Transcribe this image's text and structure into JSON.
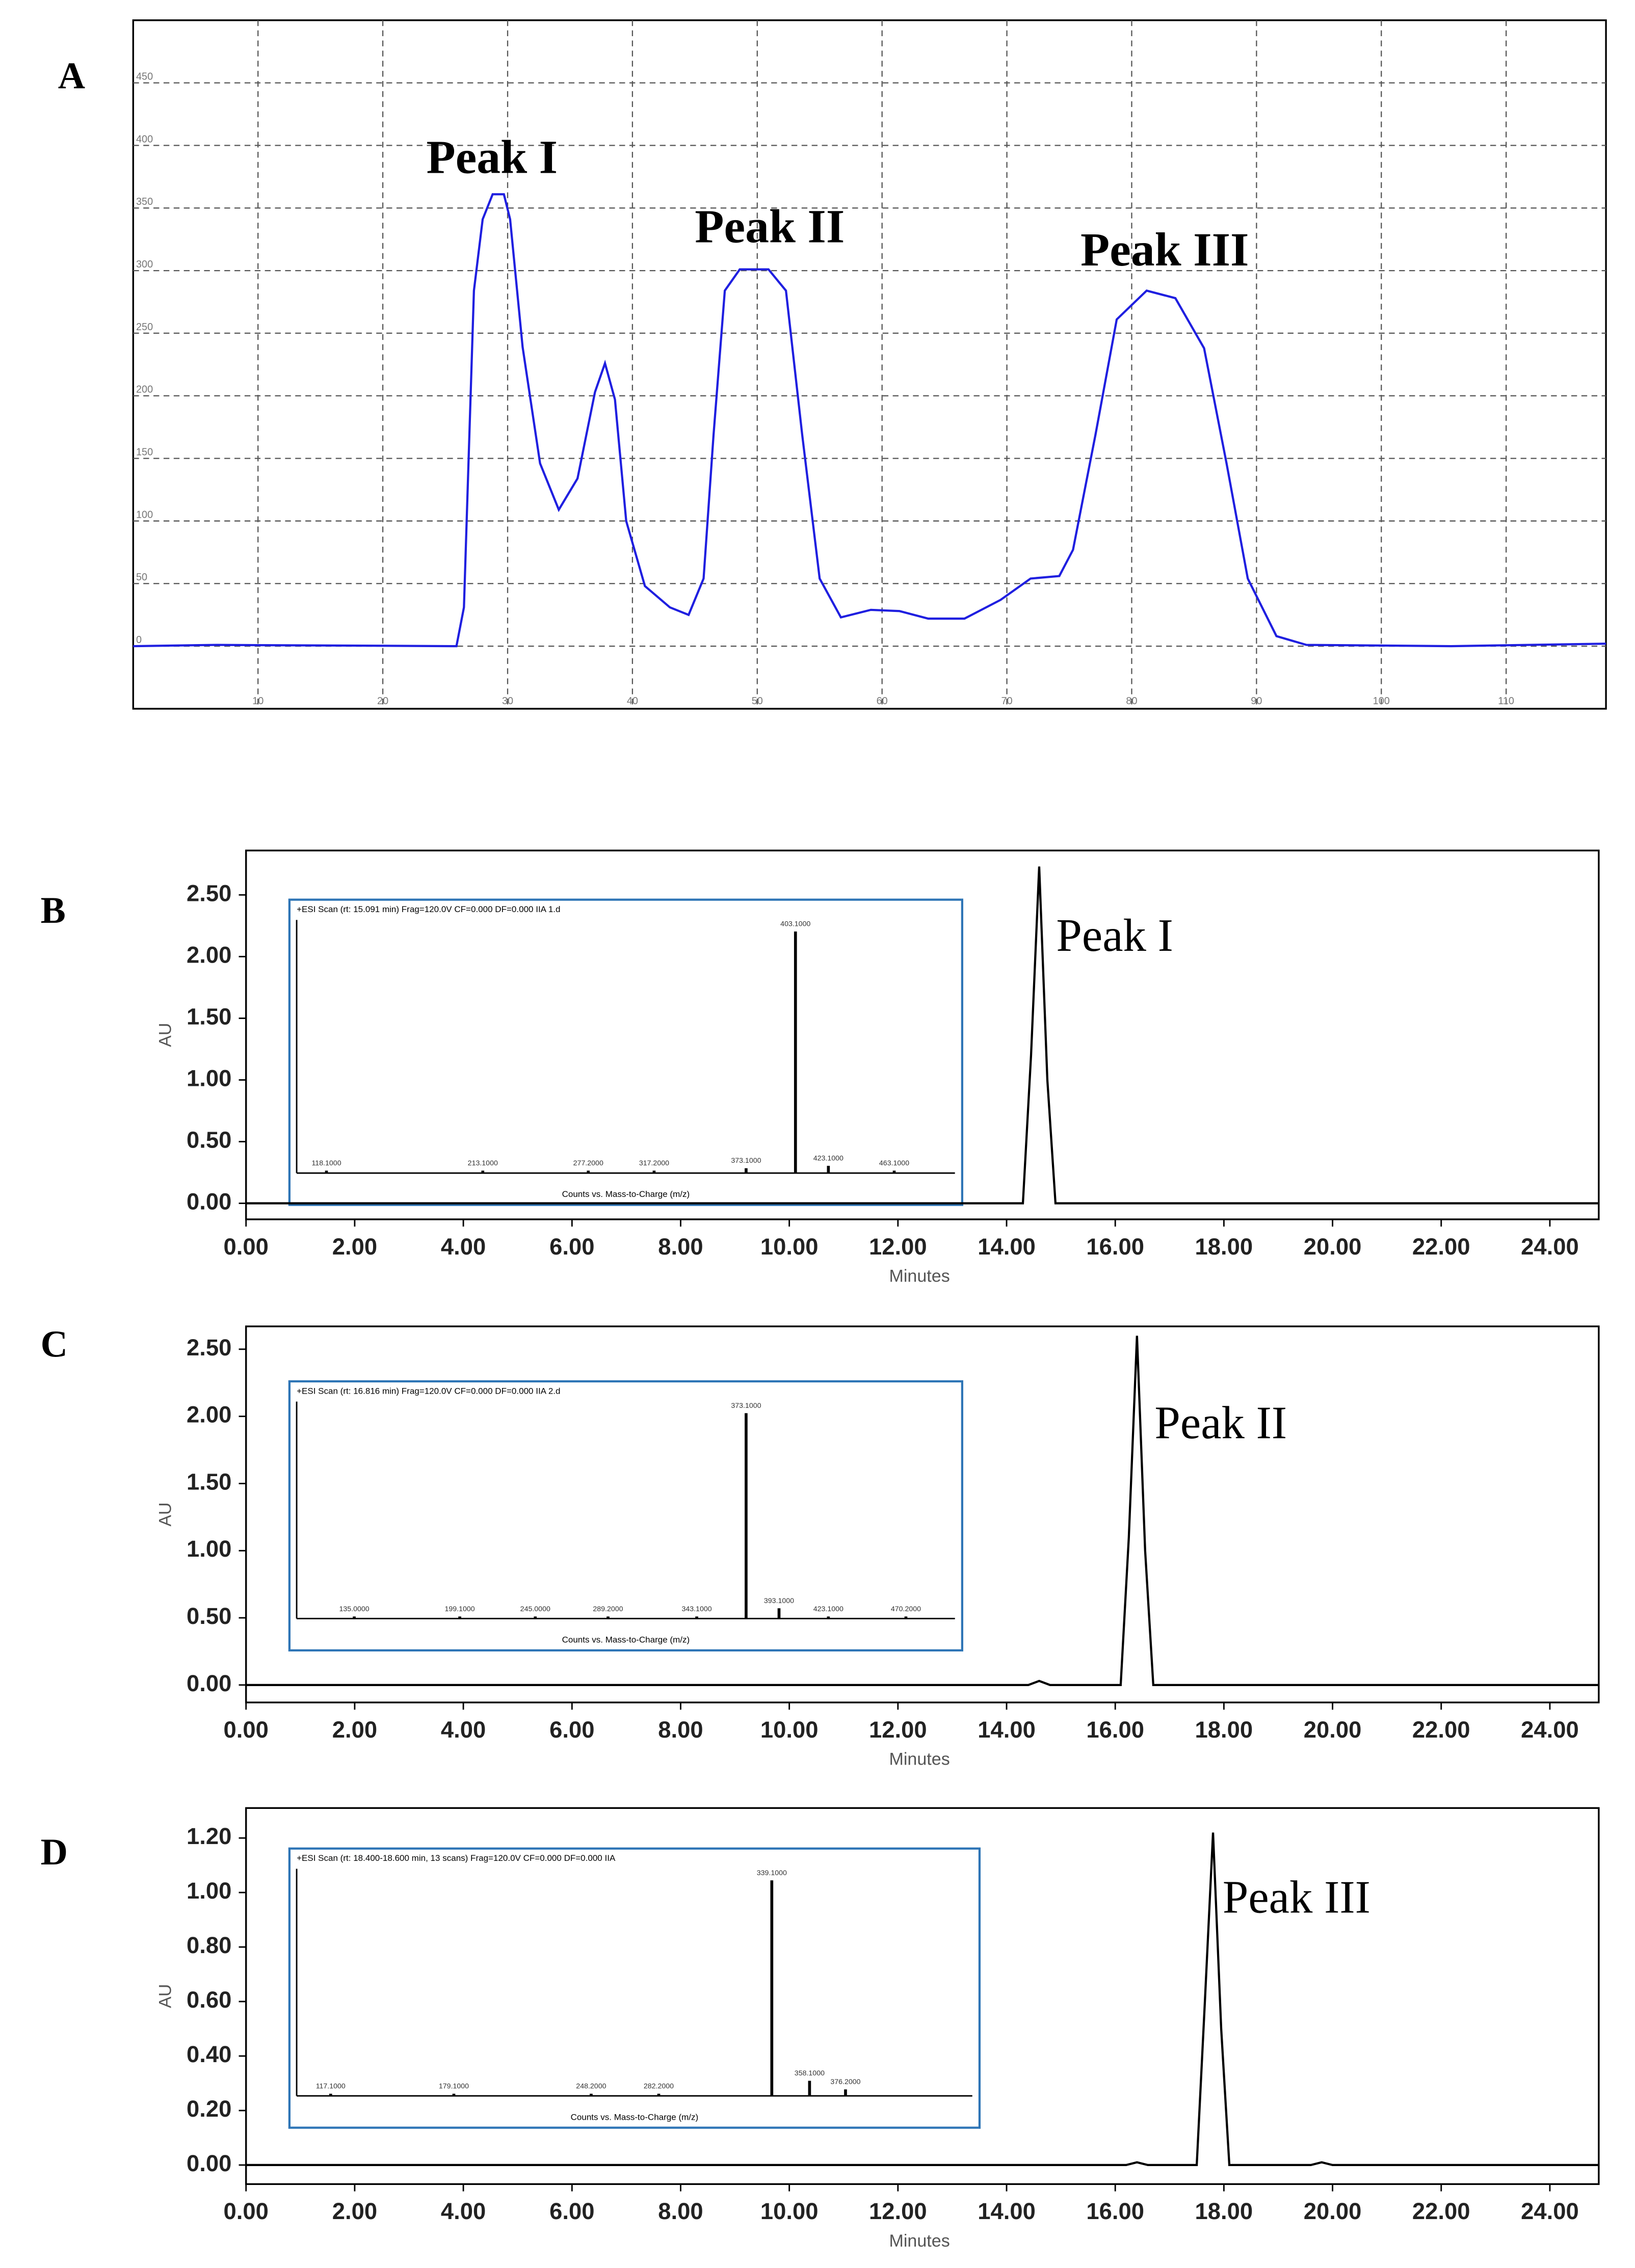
{
  "chart_data": [
    {
      "type": "line",
      "panel": "A",
      "grid": true,
      "color": "#1f1fe0",
      "xlim": [
        0,
        118
      ],
      "ylim": [
        -50,
        500
      ],
      "xticks": [
        10,
        20,
        30,
        40,
        50,
        60,
        70,
        80,
        90,
        100,
        110
      ],
      "yticks": [
        0,
        50,
        100,
        150,
        200,
        250,
        300,
        350,
        400,
        450
      ],
      "annotations": [
        "Peak I",
        "Peak II",
        "Peak III"
      ],
      "x": [
        0,
        6.7,
        25.9,
        26.5,
        27.3,
        28.0,
        28.8,
        29.7,
        30.2,
        31.2,
        32.6,
        34.1,
        35.6,
        37.0,
        37.8,
        38.6,
        39.5,
        41.0,
        43.0,
        44.5,
        45.7,
        46.5,
        47.4,
        48.6,
        50.9,
        52.3,
        53.6,
        55.0,
        56.7,
        59.1,
        61.4,
        63.7,
        66.6,
        69.5,
        71.9,
        74.2,
        75.3,
        77.1,
        78.8,
        81.2,
        83.5,
        85.8,
        87.6,
        89.3,
        91.6,
        94.0,
        105.6,
        118
      ],
      "values": [
        0,
        1,
        0,
        31,
        284,
        341,
        361,
        361,
        341,
        239,
        146,
        109,
        134,
        203,
        226,
        197,
        100,
        48,
        31,
        25,
        54,
        169,
        284,
        301,
        301,
        284,
        169,
        54,
        23,
        29,
        28,
        22,
        22,
        37,
        54,
        56,
        77,
        169,
        261,
        284,
        278,
        238,
        146,
        54,
        8,
        1,
        0,
        2
      ]
    },
    {
      "type": "line",
      "panel": "B",
      "grid": false,
      "color": "#000000",
      "xlabel": "Minutes",
      "ylabel": "AU",
      "xlim": [
        0,
        24.9
      ],
      "ylim": [
        -0.13,
        2.86
      ],
      "xticks": [
        {
          "value": 0,
          "label": "0.00"
        },
        {
          "value": 2,
          "label": "2.00"
        },
        {
          "value": 4,
          "label": "4.00"
        },
        {
          "value": 6,
          "label": "6.00"
        },
        {
          "value": 8,
          "label": "8.00"
        },
        {
          "value": 10,
          "label": "10.00"
        },
        {
          "value": 12,
          "label": "12.00"
        },
        {
          "value": 14,
          "label": "14.00"
        },
        {
          "value": 16,
          "label": "16.00"
        },
        {
          "value": 18,
          "label": "18.00"
        },
        {
          "value": 20,
          "label": "20.00"
        },
        {
          "value": 22,
          "label": "22.00"
        },
        {
          "value": 24,
          "label": "24.00"
        }
      ],
      "yticks": [
        {
          "value": 0,
          "label": "0.00"
        },
        {
          "value": 0.5,
          "label": "0.50"
        },
        {
          "value": 1,
          "label": "1.00"
        },
        {
          "value": 1.5,
          "label": "1.50"
        },
        {
          "value": 2,
          "label": "2.00"
        },
        {
          "value": 2.5,
          "label": "2.50"
        }
      ],
      "annotations": [
        "Peak I"
      ],
      "x": [
        0,
        14.3,
        14.45,
        14.6,
        14.75,
        14.9,
        24.9
      ],
      "values": [
        0,
        0,
        1.2,
        2.73,
        1.0,
        0,
        0
      ],
      "inset": {
        "type": "bar",
        "title": "+ESI Scan (rt: 15.091 min) Frag=120.0V CF=0.000 DF=0.000 IIA 1.d",
        "xlabel": "Counts vs. Mass-to-Charge (m/z)",
        "color": "#000000",
        "xlim": [
          100,
          500
        ],
        "x": [
          118.1,
          213.1,
          277.2,
          317.2,
          373.1,
          403.1,
          423.1,
          463.1
        ],
        "values": [
          0.01,
          0.01,
          0.01,
          0.01,
          0.02,
          1.0,
          0.03,
          0.01
        ],
        "peak_labels": [
          "118.1000",
          "213.1000",
          "277.2000",
          "317.2000",
          "373.1000",
          "403.1000",
          "423.1000",
          "463.1000"
        ]
      }
    },
    {
      "type": "line",
      "panel": "C",
      "grid": false,
      "color": "#000000",
      "xlabel": "Minutes",
      "ylabel": "AU",
      "xlim": [
        0,
        24.9
      ],
      "ylim": [
        -0.13,
        2.67
      ],
      "xticks": [
        {
          "value": 0,
          "label": "0.00"
        },
        {
          "value": 2,
          "label": "2.00"
        },
        {
          "value": 4,
          "label": "4.00"
        },
        {
          "value": 6,
          "label": "6.00"
        },
        {
          "value": 8,
          "label": "8.00"
        },
        {
          "value": 10,
          "label": "10.00"
        },
        {
          "value": 12,
          "label": "12.00"
        },
        {
          "value": 14,
          "label": "14.00"
        },
        {
          "value": 16,
          "label": "16.00"
        },
        {
          "value": 18,
          "label": "18.00"
        },
        {
          "value": 20,
          "label": "20.00"
        },
        {
          "value": 22,
          "label": "22.00"
        },
        {
          "value": 24,
          "label": "24.00"
        }
      ],
      "yticks": [
        {
          "value": 0,
          "label": "0.00"
        },
        {
          "value": 0.5,
          "label": "0.50"
        },
        {
          "value": 1,
          "label": "1.00"
        },
        {
          "value": 1.5,
          "label": "1.50"
        },
        {
          "value": 2,
          "label": "2.00"
        },
        {
          "value": 2.5,
          "label": "2.50"
        }
      ],
      "annotations": [
        "Peak II"
      ],
      "x": [
        0,
        14.4,
        14.6,
        14.8,
        16.1,
        16.25,
        16.4,
        16.55,
        16.7,
        24.9
      ],
      "values": [
        0,
        0,
        0.03,
        0,
        0,
        1.1,
        2.6,
        1.0,
        0,
        0
      ],
      "inset": {
        "type": "bar",
        "title": "+ESI Scan (rt: 16.816 min) Frag=120.0V CF=0.000 DF=0.000 IIA 2.d",
        "xlabel": "Counts vs. Mass-to-Charge (m/z)",
        "color": "#000000",
        "xlim": [
          100,
          500
        ],
        "x": [
          135.0,
          199.1,
          245.0,
          289.2,
          343.1,
          373.1,
          393.1,
          423.1,
          470.2
        ],
        "values": [
          0.01,
          0.01,
          0.01,
          0.01,
          0.01,
          1.0,
          0.05,
          0.01,
          0.01
        ],
        "peak_labels": [
          "135.0000",
          "199.1000",
          "245.0000",
          "289.2000",
          "343.1000",
          "373.1000",
          "393.1000",
          "423.1000",
          "470.2000"
        ]
      }
    },
    {
      "type": "line",
      "panel": "D",
      "grid": false,
      "color": "#000000",
      "xlabel": "Minutes",
      "ylabel": "AU",
      "xlim": [
        0,
        24.9
      ],
      "ylim": [
        -0.07,
        1.31
      ],
      "xticks": [
        {
          "value": 0,
          "label": "0.00"
        },
        {
          "value": 2,
          "label": "2.00"
        },
        {
          "value": 4,
          "label": "4.00"
        },
        {
          "value": 6,
          "label": "6.00"
        },
        {
          "value": 8,
          "label": "8.00"
        },
        {
          "value": 10,
          "label": "10.00"
        },
        {
          "value": 12,
          "label": "12.00"
        },
        {
          "value": 14,
          "label": "14.00"
        },
        {
          "value": 16,
          "label": "16.00"
        },
        {
          "value": 18,
          "label": "18.00"
        },
        {
          "value": 20,
          "label": "20.00"
        },
        {
          "value": 22,
          "label": "22.00"
        },
        {
          "value": 24,
          "label": "24.00"
        }
      ],
      "yticks": [
        {
          "value": 0,
          "label": "0.00"
        },
        {
          "value": 0.2,
          "label": "0.20"
        },
        {
          "value": 0.4,
          "label": "0.40"
        },
        {
          "value": 0.6,
          "label": "0.60"
        },
        {
          "value": 0.8,
          "label": "0.80"
        },
        {
          "value": 1,
          "label": "1.00"
        },
        {
          "value": 1.2,
          "label": "1.20"
        }
      ],
      "annotations": [
        "Peak III"
      ],
      "x": [
        0,
        16.2,
        16.4,
        16.6,
        17.5,
        17.65,
        17.8,
        17.95,
        18.1,
        19.6,
        19.8,
        20.0,
        24.9
      ],
      "values": [
        0,
        0,
        0.01,
        0,
        0,
        0.6,
        1.22,
        0.5,
        0,
        0,
        0.01,
        0,
        0
      ],
      "inset": {
        "type": "bar",
        "title": "+ESI Scan (rt: 18.400-18.600 min, 13 scans) Frag=120.0V CF=0.000 DF=0.000 IIA",
        "xlabel": "Counts vs. Mass-to-Charge (m/z)",
        "color": "#000000",
        "xlim": [
          100,
          440
        ],
        "x": [
          117.1,
          179.1,
          248.2,
          282.2,
          339.1,
          358.1,
          376.2
        ],
        "values": [
          0.01,
          0.01,
          0.01,
          0.01,
          1.0,
          0.07,
          0.03
        ],
        "peak_labels": [
          "117.1000",
          "179.1000",
          "248.2000",
          "282.2000",
          "339.1000",
          "358.1000",
          "376.2000"
        ]
      }
    }
  ]
}
